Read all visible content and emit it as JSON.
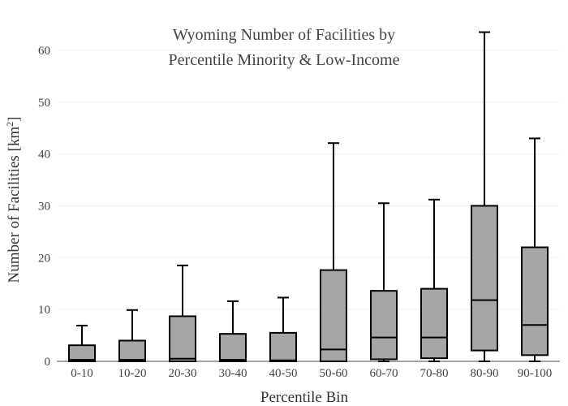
{
  "chart_data": {
    "type": "box",
    "title_lines": [
      "Wyoming Number of Facilities by",
      "Percentile Minority & Low-Income"
    ],
    "xlabel": "Percentile Bin",
    "ylabel": "Number of Facilities  [km",
    "ylabel_superscript": "2",
    "ylabel_suffix": "]",
    "ylim": [
      0,
      65
    ],
    "yticks": [
      0,
      10,
      20,
      30,
      40,
      50,
      60
    ],
    "grid": true,
    "colors": {
      "box_fill": "#a6a6a6",
      "box_stroke": "#000000",
      "grid": "#eeeeee",
      "text": "#444444"
    },
    "categories": [
      "0-10",
      "10-20",
      "20-30",
      "30-40",
      "40-50",
      "50-60",
      "60-70",
      "70-80",
      "80-90",
      "90-100"
    ],
    "boxes": [
      {
        "category": "0-10",
        "min": 0,
        "q1": 0,
        "median": 0.3,
        "q3": 3.1,
        "max": 6.9
      },
      {
        "category": "10-20",
        "min": 0,
        "q1": 0,
        "median": 0.3,
        "q3": 4.0,
        "max": 9.9
      },
      {
        "category": "20-30",
        "min": 0,
        "q1": 0,
        "median": 0.5,
        "q3": 8.7,
        "max": 18.5
      },
      {
        "category": "30-40",
        "min": 0,
        "q1": 0,
        "median": 0.3,
        "q3": 5.3,
        "max": 11.6
      },
      {
        "category": "40-50",
        "min": 0,
        "q1": 0,
        "median": 0.2,
        "q3": 5.5,
        "max": 12.3
      },
      {
        "category": "50-60",
        "min": 0,
        "q1": 0,
        "median": 2.3,
        "q3": 17.6,
        "max": 42.1
      },
      {
        "category": "60-70",
        "min": 0,
        "q1": 0.4,
        "median": 4.6,
        "q3": 13.6,
        "max": 30.5
      },
      {
        "category": "70-80",
        "min": 0,
        "q1": 0.6,
        "median": 4.6,
        "q3": 14.0,
        "max": 31.2
      },
      {
        "category": "80-90",
        "min": 0,
        "q1": 2.1,
        "median": 11.8,
        "q3": 30.0,
        "max": 63.5
      },
      {
        "category": "90-100",
        "min": 0,
        "q1": 1.2,
        "median": 7.0,
        "q3": 22.0,
        "max": 43.0
      }
    ]
  }
}
